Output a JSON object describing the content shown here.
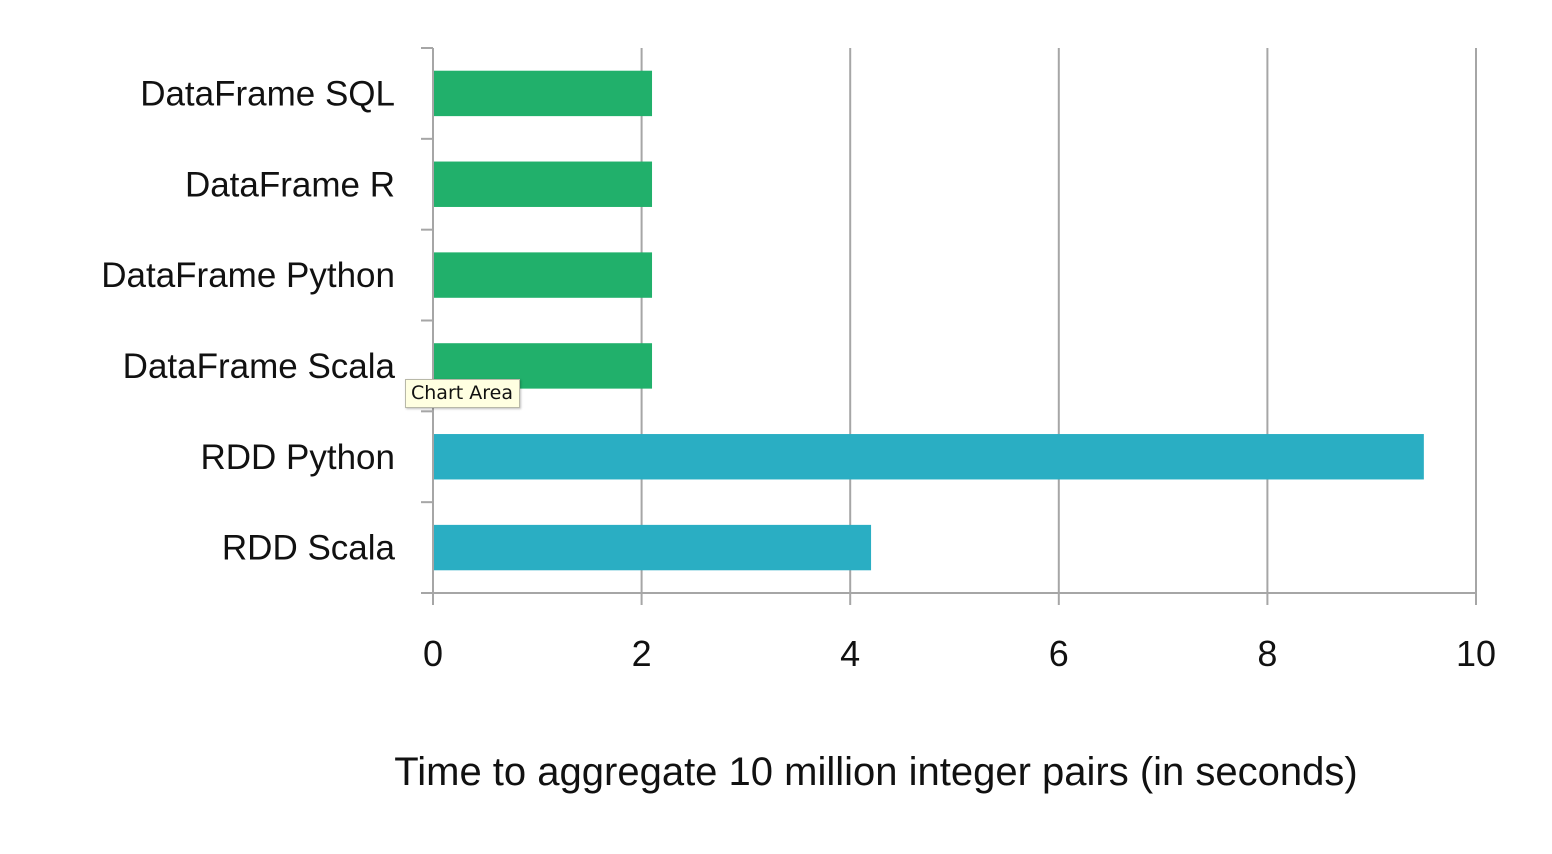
{
  "chart_data": {
    "type": "bar",
    "orientation": "horizontal",
    "categories": [
      "DataFrame SQL",
      "DataFrame R",
      "DataFrame Python",
      "DataFrame Scala",
      "RDD Python",
      "RDD Scala"
    ],
    "values": [
      2.1,
      2.1,
      2.1,
      2.1,
      9.5,
      4.2
    ],
    "bar_colors": [
      "#21b06b",
      "#21b06b",
      "#21b06b",
      "#21b06b",
      "#2aaec3",
      "#2aaec3"
    ],
    "title": "",
    "xlabel": "Time to aggregate 10 million integer pairs (in seconds)",
    "ylabel": "",
    "xlim": [
      0,
      10
    ],
    "xticks": [
      0,
      2,
      4,
      6,
      8,
      10
    ],
    "grid": "vertical",
    "legend": "none"
  },
  "tooltip": {
    "text": "Chart Area"
  }
}
